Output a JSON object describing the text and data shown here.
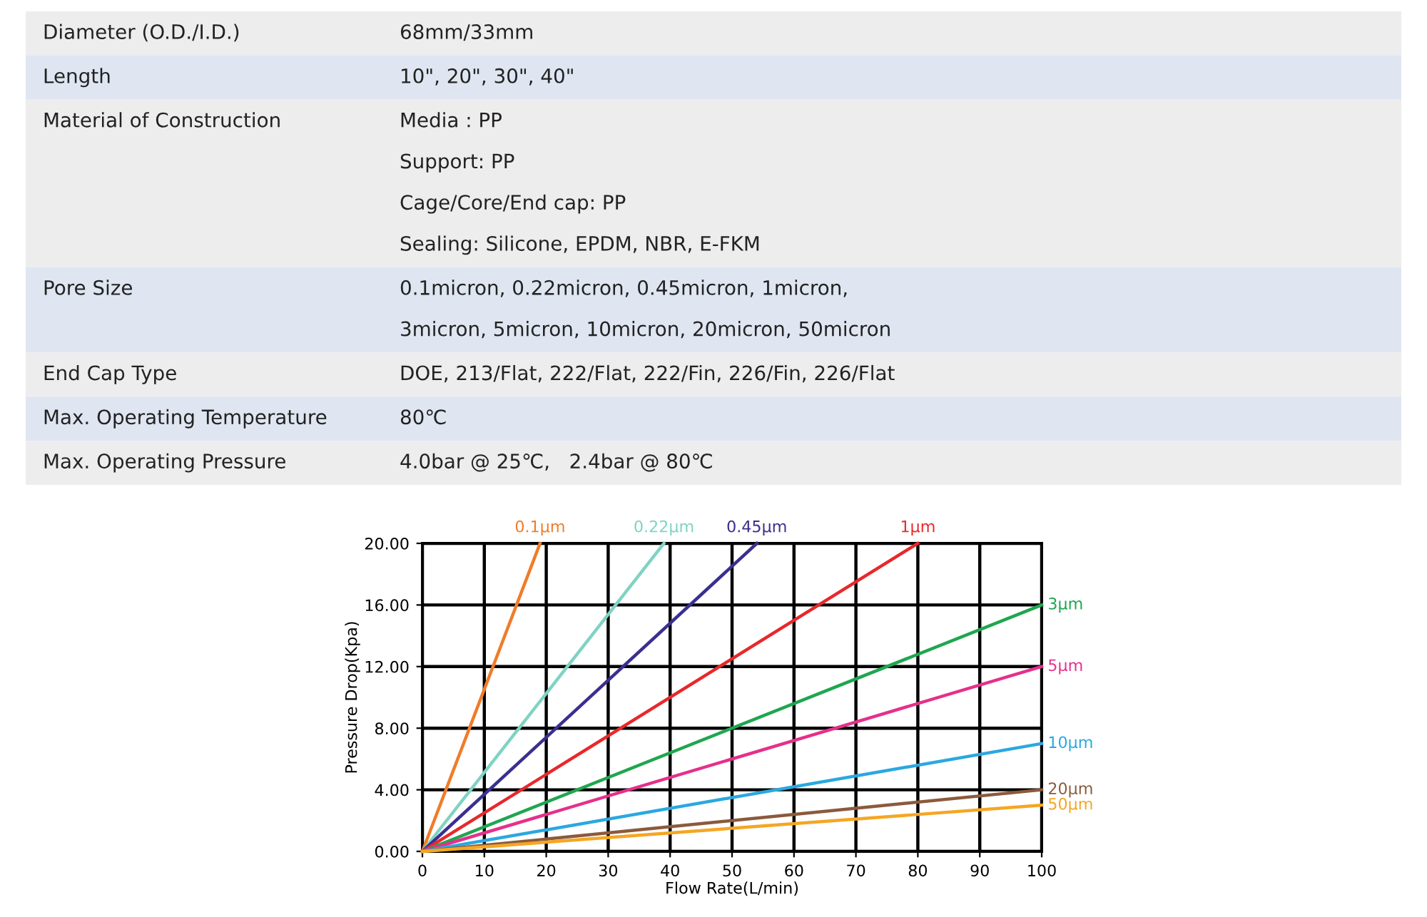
{
  "chart_data": [
    {
      "type": "other",
      "cell_labels": [
        [
          "Diameter (O.D./I.D.)",
          "68mm/33mm"
        ],
        [
          "Length",
          "10\", 20\", 30\", 40\""
        ],
        [
          "Material of Construction",
          "Media : PP\nSupport: PP\nCage/Core/End cap: PP\nSealing: Silicone, EPDM, NBR, E-FKM"
        ],
        [
          "Pore Size",
          "0.1micron, 0.22micron, 0.45micron, 1micron,\n3micron, 5micron, 10micron, 20micron, 50micron"
        ],
        [
          "End Cap Type",
          "DOE, 213/Flat, 222/Flat, 222/Fin, 226/Fin, 226/Flat"
        ],
        [
          "Max. Operating Temperature",
          "80℃"
        ],
        [
          "Max. Operating Pressure",
          "4.0bar @ 25℃,   2.4bar @ 80℃"
        ]
      ],
      "colors": [
        "#ededed",
        "#dfe6f1",
        "#ededed",
        "#dfe6f1",
        "#ededed",
        "#dfe6f1",
        "#ededed"
      ]
    },
    {
      "type": "line",
      "xlabel": "Flow Rate(L/min)",
      "ylabel": "Pressure Drop(Kpa)",
      "xlim": [
        0,
        100
      ],
      "ylim": [
        0,
        20
      ],
      "xticks": [
        0,
        10,
        20,
        30,
        40,
        50,
        60,
        70,
        80,
        90,
        100
      ],
      "yticks": [
        {
          "value": 0,
          "label": "0.00"
        },
        {
          "value": 4,
          "label": "4.00"
        },
        {
          "value": 8,
          "label": "8.00"
        },
        {
          "value": 12,
          "label": "12.00"
        },
        {
          "value": 16,
          "label": "16.00"
        },
        {
          "value": 20,
          "label": "20.00"
        }
      ],
      "grid": true,
      "marker": "none",
      "line_style": "solid",
      "series": [
        {
          "name": "0.1μm",
          "color": "#f07c2a",
          "x": [
            0,
            19
          ],
          "values": [
            0,
            20
          ]
        },
        {
          "name": "0.22μm",
          "color": "#7fd3c3",
          "x": [
            0,
            39
          ],
          "values": [
            0,
            20
          ]
        },
        {
          "name": "0.45μm",
          "color": "#3a2f8f",
          "x": [
            0,
            54
          ],
          "values": [
            0,
            20
          ]
        },
        {
          "name": "1μm",
          "color": "#e8282b",
          "x": [
            0,
            80
          ],
          "values": [
            0,
            20
          ]
        },
        {
          "name": "3μm",
          "color": "#1fa650",
          "x": [
            0,
            100
          ],
          "values": [
            0,
            16
          ]
        },
        {
          "name": "5μm",
          "color": "#e5308a",
          "x": [
            0,
            100
          ],
          "values": [
            0,
            12
          ]
        },
        {
          "name": "10μm",
          "color": "#2aa8e0",
          "x": [
            0,
            100
          ],
          "values": [
            0,
            7
          ]
        },
        {
          "name": "20μm",
          "color": "#8b5a3c",
          "x": [
            0,
            100
          ],
          "values": [
            0,
            4
          ]
        },
        {
          "name": "50μm",
          "color": "#f5a623",
          "x": [
            0,
            100
          ],
          "values": [
            0,
            3
          ]
        }
      ]
    }
  ]
}
